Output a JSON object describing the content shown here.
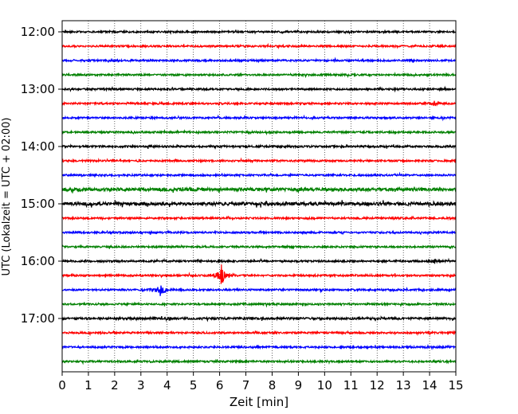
{
  "chart_data": {
    "type": "line",
    "xlabel": "Zeit  [min]",
    "ylabel": "UTC (Lokalzeit = UTC + 02:00)",
    "xlim": [
      0,
      15
    ],
    "x_ticks": [
      "0",
      "1",
      "2",
      "3",
      "4",
      "5",
      "6",
      "7",
      "8",
      "9",
      "10",
      "11",
      "12",
      "13",
      "14",
      "15"
    ],
    "y_ticks": [
      "12:00",
      "13:00",
      "14:00",
      "15:00",
      "16:00",
      "17:00"
    ],
    "grid": "vertical-dotted",
    "trace_colors": [
      "#000000",
      "#ff0000",
      "#0000ff",
      "#008000"
    ],
    "traces": [
      {
        "start": "12:00",
        "amplitude": 1.0,
        "events": []
      },
      {
        "start": "12:15",
        "amplitude": 1.0,
        "events": []
      },
      {
        "start": "12:30",
        "amplitude": 1.0,
        "events": []
      },
      {
        "start": "12:45",
        "amplitude": 1.0,
        "events": []
      },
      {
        "start": "13:00",
        "amplitude": 1.0,
        "events": []
      },
      {
        "start": "13:15",
        "amplitude": 1.0,
        "events": [
          {
            "t": 14.2,
            "amp": 3
          }
        ]
      },
      {
        "start": "13:30",
        "amplitude": 1.0,
        "events": []
      },
      {
        "start": "13:45",
        "amplitude": 1.0,
        "events": []
      },
      {
        "start": "14:00",
        "amplitude": 1.1,
        "events": []
      },
      {
        "start": "14:15",
        "amplitude": 1.0,
        "events": []
      },
      {
        "start": "14:30",
        "amplitude": 1.0,
        "events": []
      },
      {
        "start": "14:45",
        "amplitude": 1.8,
        "events": []
      },
      {
        "start": "15:00",
        "amplitude": 1.8,
        "events": []
      },
      {
        "start": "15:15",
        "amplitude": 1.0,
        "events": []
      },
      {
        "start": "15:30",
        "amplitude": 1.0,
        "events": []
      },
      {
        "start": "15:45",
        "amplitude": 1.0,
        "events": []
      },
      {
        "start": "16:00",
        "amplitude": 1.0,
        "events": [
          {
            "t": 14.2,
            "amp": 3
          }
        ]
      },
      {
        "start": "16:15",
        "amplitude": 1.0,
        "events": [
          {
            "t": 6.1,
            "amp": 16
          }
        ]
      },
      {
        "start": "16:30",
        "amplitude": 1.0,
        "events": [
          {
            "t": 3.75,
            "amp": 9
          }
        ]
      },
      {
        "start": "16:45",
        "amplitude": 1.0,
        "events": []
      },
      {
        "start": "17:00",
        "amplitude": 1.2,
        "events": []
      },
      {
        "start": "17:15",
        "amplitude": 1.0,
        "events": []
      },
      {
        "start": "17:30",
        "amplitude": 1.0,
        "events": []
      },
      {
        "start": "17:45",
        "amplitude": 1.0,
        "events": []
      }
    ]
  }
}
